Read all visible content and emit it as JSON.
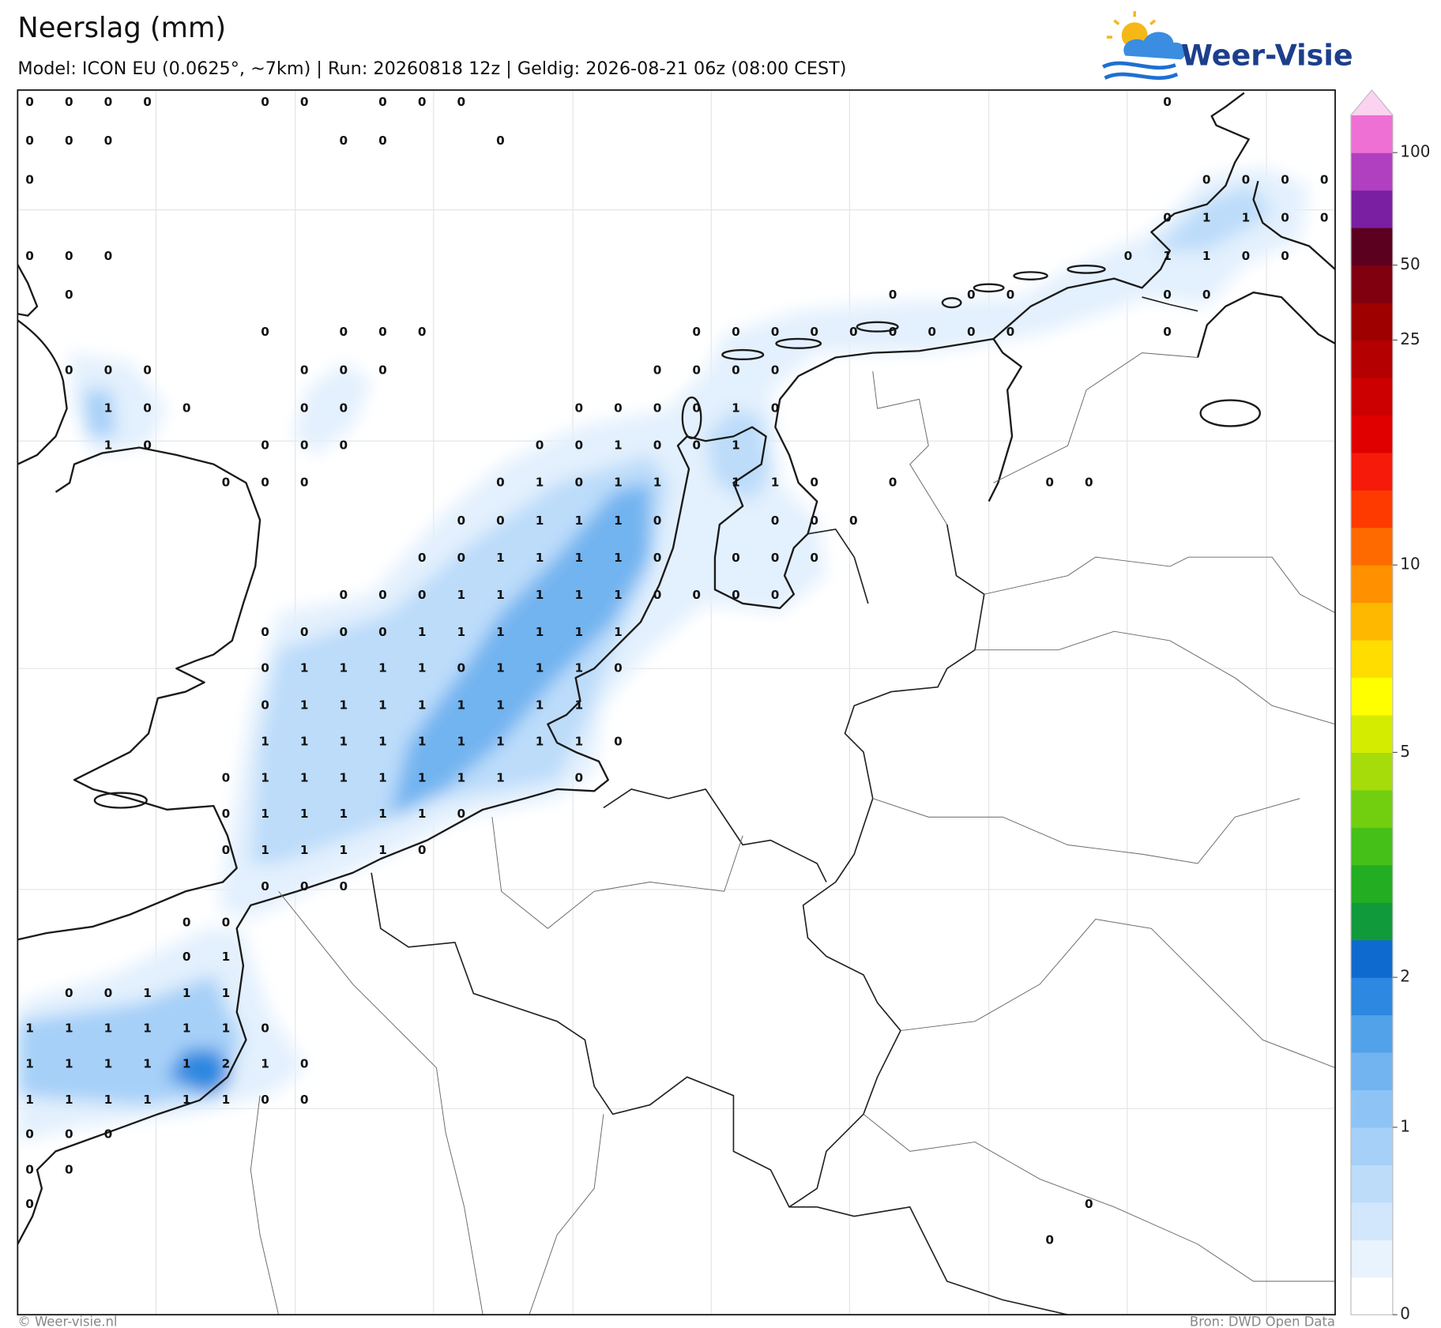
{
  "header": {
    "title": "Neerslag (mm)",
    "subtitle": "Model: ICON EU (0.0625°, ~7km)  |  Run: 20260818 12z  |  Geldig: 2026-08-21 06z (08:00 CEST)"
  },
  "logo": "Weer-Visie",
  "map": {
    "grid_values": [
      [
        0,
        0,
        0,
        0,
        null,
        null,
        0,
        0,
        null,
        0,
        0,
        0,
        null,
        null,
        null,
        null,
        null,
        null,
        null,
        null,
        null,
        null,
        null,
        null,
        null,
        null,
        null,
        null,
        null,
        0,
        null,
        null,
        null,
        null
      ],
      [
        0,
        0,
        0,
        null,
        null,
        null,
        null,
        null,
        0,
        0,
        null,
        null,
        0,
        null,
        null,
        null,
        null,
        null,
        null,
        null,
        null,
        null,
        null,
        null,
        null,
        null,
        null,
        null,
        null,
        null,
        null,
        null,
        null,
        null
      ],
      [
        0,
        null,
        null,
        null,
        null,
        null,
        null,
        null,
        null,
        null,
        null,
        null,
        null,
        null,
        null,
        null,
        null,
        null,
        null,
        null,
        null,
        null,
        null,
        null,
        null,
        null,
        null,
        null,
        null,
        null,
        0,
        0,
        0,
        0
      ],
      [
        null,
        null,
        null,
        null,
        null,
        null,
        null,
        null,
        null,
        null,
        null,
        null,
        null,
        null,
        null,
        null,
        null,
        null,
        null,
        null,
        null,
        null,
        null,
        null,
        null,
        null,
        null,
        null,
        null,
        0,
        1,
        1,
        0,
        0
      ],
      [
        0,
        0,
        0,
        null,
        null,
        null,
        null,
        null,
        null,
        null,
        null,
        null,
        null,
        null,
        null,
        null,
        null,
        null,
        null,
        null,
        null,
        null,
        null,
        null,
        null,
        null,
        null,
        null,
        0,
        1,
        1,
        0,
        0,
        null
      ],
      [
        null,
        0,
        null,
        null,
        null,
        null,
        null,
        null,
        null,
        null,
        null,
        null,
        null,
        null,
        null,
        null,
        null,
        null,
        null,
        null,
        null,
        null,
        0,
        null,
        0,
        0,
        null,
        null,
        null,
        0,
        0,
        null,
        null,
        null
      ],
      [
        null,
        null,
        null,
        null,
        null,
        null,
        0,
        null,
        0,
        0,
        0,
        null,
        null,
        null,
        null,
        null,
        null,
        0,
        0,
        0,
        0,
        0,
        0,
        0,
        0,
        0,
        null,
        null,
        null,
        0,
        null,
        null,
        null,
        null
      ],
      [
        null,
        0,
        0,
        0,
        null,
        null,
        null,
        0,
        0,
        0,
        null,
        null,
        null,
        null,
        null,
        null,
        0,
        0,
        0,
        0,
        null,
        null,
        null,
        null,
        null,
        null,
        null,
        null,
        null,
        null,
        null,
        null,
        null,
        null
      ],
      [
        null,
        null,
        1,
        0,
        0,
        null,
        null,
        0,
        0,
        null,
        null,
        null,
        null,
        null,
        0,
        0,
        0,
        0,
        1,
        0,
        null,
        null,
        null,
        null,
        null,
        null,
        null,
        null,
        null,
        null,
        null,
        null,
        null,
        null
      ],
      [
        null,
        null,
        1,
        0,
        null,
        null,
        0,
        0,
        0,
        null,
        null,
        null,
        null,
        0,
        0,
        1,
        0,
        0,
        1,
        null,
        null,
        null,
        null,
        null,
        null,
        null,
        null,
        null,
        null,
        null,
        null,
        null,
        null,
        null
      ],
      [
        null,
        null,
        null,
        null,
        null,
        0,
        0,
        0,
        null,
        null,
        null,
        null,
        0,
        1,
        0,
        1,
        1,
        null,
        1,
        1,
        0,
        null,
        0,
        null,
        null,
        null,
        0,
        0,
        null,
        null,
        null,
        null,
        null,
        null
      ],
      [
        null,
        null,
        null,
        null,
        null,
        null,
        null,
        null,
        null,
        null,
        null,
        0,
        0,
        1,
        1,
        1,
        0,
        null,
        null,
        0,
        0,
        0,
        null,
        null,
        null,
        null,
        null,
        null,
        null,
        null,
        null,
        null,
        null,
        null
      ],
      [
        null,
        null,
        null,
        null,
        null,
        null,
        null,
        null,
        null,
        null,
        0,
        0,
        1,
        1,
        1,
        1,
        0,
        null,
        0,
        0,
        0,
        null,
        null,
        null,
        null,
        null,
        null,
        null,
        null,
        null,
        null,
        null,
        null,
        null
      ],
      [
        null,
        null,
        null,
        null,
        null,
        null,
        null,
        null,
        0,
        0,
        0,
        1,
        1,
        1,
        1,
        1,
        0,
        0,
        0,
        0,
        null,
        null,
        null,
        null,
        null,
        null,
        null,
        null,
        null,
        null,
        null,
        null,
        null,
        null
      ],
      [
        null,
        null,
        null,
        null,
        null,
        null,
        0,
        0,
        0,
        0,
        1,
        1,
        1,
        1,
        1,
        1,
        null,
        null,
        null,
        null,
        null,
        null,
        null,
        null,
        null,
        null,
        null,
        null,
        null,
        null,
        null,
        null,
        null,
        null
      ],
      [
        null,
        null,
        null,
        null,
        null,
        null,
        0,
        1,
        1,
        1,
        1,
        0,
        1,
        1,
        1,
        0,
        null,
        null,
        null,
        null,
        null,
        null,
        null,
        null,
        null,
        null,
        null,
        null,
        null,
        null,
        null,
        null,
        null,
        null
      ],
      [
        null,
        null,
        null,
        null,
        null,
        null,
        0,
        1,
        1,
        1,
        1,
        1,
        1,
        1,
        1,
        null,
        null,
        null,
        null,
        null,
        null,
        null,
        null,
        null,
        null,
        null,
        null,
        null,
        null,
        null,
        null,
        null,
        null,
        null
      ],
      [
        null,
        null,
        null,
        null,
        null,
        null,
        1,
        1,
        1,
        1,
        1,
        1,
        1,
        1,
        1,
        0,
        null,
        null,
        null,
        null,
        null,
        null,
        null,
        null,
        null,
        null,
        null,
        null,
        null,
        null,
        null,
        null,
        null,
        null
      ],
      [
        null,
        null,
        null,
        null,
        null,
        0,
        1,
        1,
        1,
        1,
        1,
        1,
        1,
        null,
        0,
        null,
        null,
        null,
        null,
        null,
        null,
        null,
        null,
        null,
        null,
        null,
        null,
        null,
        null,
        null,
        null,
        null,
        null,
        null
      ],
      [
        null,
        null,
        null,
        null,
        null,
        0,
        1,
        1,
        1,
        1,
        1,
        0,
        null,
        null,
        null,
        null,
        null,
        null,
        null,
        null,
        null,
        null,
        null,
        null,
        null,
        null,
        null,
        null,
        null,
        null,
        null,
        null,
        null,
        null
      ],
      [
        null,
        null,
        null,
        null,
        null,
        0,
        1,
        1,
        1,
        1,
        0,
        null,
        null,
        null,
        null,
        null,
        null,
        null,
        null,
        null,
        null,
        null,
        null,
        null,
        null,
        null,
        null,
        null,
        null,
        null,
        null,
        null,
        null,
        null
      ],
      [
        null,
        null,
        null,
        null,
        null,
        null,
        0,
        0,
        0,
        null,
        null,
        null,
        null,
        null,
        null,
        null,
        null,
        null,
        null,
        null,
        null,
        null,
        null,
        null,
        null,
        null,
        null,
        null,
        null,
        null,
        null,
        null,
        null,
        null
      ],
      [
        null,
        null,
        null,
        null,
        0,
        0,
        null,
        null,
        null,
        null,
        null,
        null,
        null,
        null,
        null,
        null,
        null,
        null,
        null,
        null,
        null,
        null,
        null,
        null,
        null,
        null,
        null,
        null,
        null,
        null,
        null,
        null,
        null,
        null
      ],
      [
        null,
        null,
        null,
        null,
        0,
        1,
        null,
        null,
        null,
        null,
        null,
        null,
        null,
        null,
        null,
        null,
        null,
        null,
        null,
        null,
        null,
        null,
        null,
        null,
        null,
        null,
        null,
        null,
        null,
        null,
        null,
        null,
        null,
        null
      ],
      [
        null,
        0,
        0,
        1,
        1,
        1,
        null,
        null,
        null,
        null,
        null,
        null,
        null,
        null,
        null,
        null,
        null,
        null,
        null,
        null,
        null,
        null,
        null,
        null,
        null,
        null,
        null,
        null,
        null,
        null,
        null,
        null,
        null,
        null
      ],
      [
        1,
        1,
        1,
        1,
        1,
        1,
        0,
        null,
        null,
        null,
        null,
        null,
        null,
        null,
        null,
        null,
        null,
        null,
        null,
        null,
        null,
        null,
        null,
        null,
        null,
        null,
        null,
        null,
        null,
        null,
        null,
        null,
        null,
        null
      ],
      [
        1,
        1,
        1,
        1,
        1,
        2,
        1,
        0,
        null,
        null,
        null,
        null,
        null,
        null,
        null,
        null,
        null,
        null,
        null,
        null,
        null,
        null,
        null,
        null,
        null,
        null,
        null,
        null,
        null,
        null,
        null,
        null,
        null,
        null
      ],
      [
        1,
        1,
        1,
        1,
        1,
        1,
        0,
        0,
        null,
        null,
        null,
        null,
        null,
        null,
        null,
        null,
        null,
        null,
        null,
        null,
        null,
        null,
        null,
        null,
        null,
        null,
        null,
        null,
        null,
        null,
        null,
        null,
        null,
        null
      ],
      [
        0,
        0,
        0,
        null,
        null,
        null,
        null,
        null,
        null,
        null,
        null,
        null,
        null,
        null,
        null,
        null,
        null,
        null,
        null,
        null,
        null,
        null,
        null,
        null,
        null,
        null,
        null,
        null,
        null,
        null,
        null,
        null,
        null,
        null
      ],
      [
        0,
        0,
        null,
        null,
        null,
        null,
        null,
        null,
        null,
        null,
        null,
        null,
        null,
        null,
        null,
        null,
        null,
        null,
        null,
        null,
        null,
        null,
        null,
        null,
        null,
        null,
        null,
        null,
        null,
        null,
        null,
        null,
        null,
        null
      ],
      [
        0,
        null,
        null,
        null,
        null,
        null,
        null,
        null,
        null,
        null,
        null,
        null,
        null,
        null,
        null,
        null,
        null,
        null,
        null,
        null,
        null,
        null,
        null,
        null,
        null,
        null,
        null,
        0,
        null,
        null,
        null,
        null,
        null,
        null
      ],
      [
        null,
        null,
        null,
        null,
        null,
        null,
        null,
        null,
        null,
        null,
        null,
        null,
        null,
        null,
        null,
        null,
        null,
        null,
        null,
        null,
        null,
        null,
        null,
        null,
        null,
        null,
        0,
        null,
        null,
        null,
        null,
        null,
        null,
        null
      ]
    ]
  },
  "colorbar": {
    "ticks": [
      0,
      1,
      2,
      5,
      10,
      25,
      50,
      100
    ],
    "colors": [
      "#ffffff",
      "#e8f3fd",
      "#d2e7fb",
      "#bcdcfa",
      "#a6d0f8",
      "#8ec4f5",
      "#72b4f0",
      "#52a2ea",
      "#2c88e0",
      "#0f6ad0",
      "#119a3c",
      "#23ad22",
      "#45c018",
      "#71cf10",
      "#a5dc0a",
      "#d4ec00",
      "#ffff00",
      "#ffdd00",
      "#ffb800",
      "#ff9000",
      "#ff6a00",
      "#ff3a00",
      "#f51a0a",
      "#e00000",
      "#cc0000",
      "#b40000",
      "#9e0000",
      "#800010",
      "#5c0020",
      "#7a1fa2",
      "#b040c0",
      "#ee70d4"
    ],
    "extend_color": "#fbd3f0"
  },
  "footer": {
    "left": "© Weer-visie.nl",
    "right": "Bron: DWD Open Data"
  }
}
